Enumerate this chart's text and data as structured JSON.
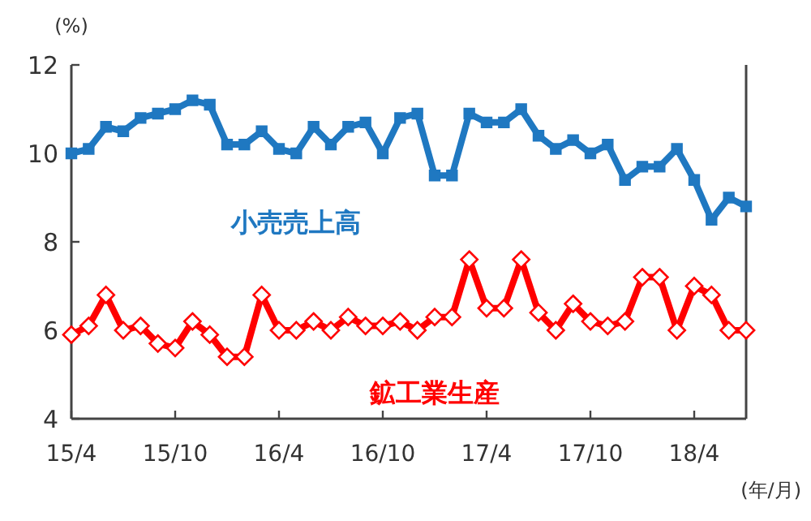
{
  "chart_data": {
    "type": "line",
    "ylabel": "(%)",
    "xlabel": "(年/月)",
    "categories": [
      "15/4",
      null,
      null,
      null,
      null,
      null,
      "15/10",
      null,
      null,
      null,
      null,
      null,
      "16/4",
      null,
      null,
      null,
      null,
      null,
      "16/10",
      null,
      null,
      null,
      null,
      null,
      "17/4",
      null,
      null,
      null,
      null,
      null,
      "17/10",
      null,
      null,
      null,
      null,
      null,
      "18/4",
      null,
      null,
      null
    ],
    "series": [
      {
        "name": "小売売上高",
        "color": "#1f78c1",
        "marker": "square",
        "values": [
          10.0,
          10.1,
          10.6,
          10.5,
          10.8,
          10.9,
          11.0,
          11.2,
          11.1,
          10.2,
          10.2,
          10.5,
          10.1,
          10.0,
          10.6,
          10.2,
          10.6,
          10.7,
          10.0,
          10.8,
          10.9,
          9.5,
          9.5,
          10.9,
          10.7,
          10.7,
          11.0,
          10.4,
          10.1,
          10.3,
          10.0,
          10.2,
          9.4,
          9.7,
          9.7,
          10.1,
          9.4,
          8.5,
          9.0,
          8.8
        ]
      },
      {
        "name": "鉱工業生産",
        "color": "#ff0000",
        "marker": "diamond",
        "values": [
          5.9,
          6.1,
          6.8,
          6.0,
          6.1,
          5.7,
          5.6,
          6.2,
          5.9,
          5.4,
          5.4,
          6.8,
          6.0,
          6.0,
          6.2,
          6.0,
          6.3,
          6.1,
          6.1,
          6.2,
          6.0,
          6.3,
          6.3,
          7.6,
          6.5,
          6.5,
          7.6,
          6.4,
          6.0,
          6.6,
          6.2,
          6.1,
          6.2,
          7.2,
          7.2,
          6.0,
          7.0,
          6.8,
          6.0,
          6.0
        ]
      }
    ],
    "ylim": [
      4,
      12
    ],
    "yticks": [
      4,
      6,
      8,
      10,
      12
    ],
    "grid": false,
    "line_style": "solid"
  }
}
